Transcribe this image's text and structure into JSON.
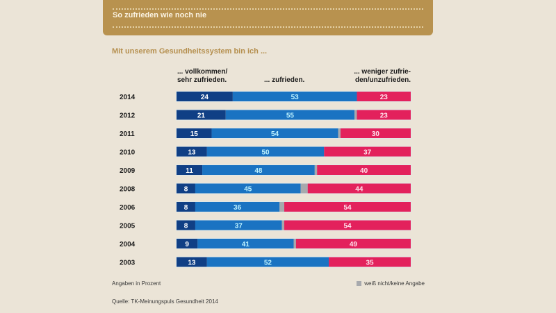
{
  "header": {
    "title": "So zufrieden wie noch nie"
  },
  "subtitle": "Mit unserem Gesundheitssystem bin ich ...",
  "columns": {
    "very_satisfied": [
      "... vollkommen/",
      "sehr zufrieden."
    ],
    "satisfied": "... zufrieden.",
    "less_satisfied": [
      "... weniger zufrie-",
      "den/unzufrieden."
    ]
  },
  "colors": {
    "very_satisfied": "#103f85",
    "satisfied": "#1a73c2",
    "no_answer": "#a7a9ad",
    "less_satisfied": "#e3215c",
    "label_dark_segment": "#ffffff",
    "label_mid_segment": "#bdf2ff",
    "label_pink_segment": "#ffe3ec"
  },
  "chart_data": {
    "type": "bar",
    "orientation": "horizontal",
    "stacked": true,
    "title": "So zufrieden wie noch nie",
    "subtitle": "Mit unserem Gesundheitssystem bin ich ...",
    "unit": "Prozent",
    "xlim": [
      0,
      100
    ],
    "categories": [
      "2014",
      "2012",
      "2011",
      "2010",
      "2009",
      "2008",
      "2006",
      "2005",
      "2004",
      "2003"
    ],
    "series": [
      {
        "name": "... vollkommen/sehr zufrieden.",
        "key": "very_satisfied",
        "values": [
          24,
          21,
          15,
          13,
          11,
          8,
          8,
          8,
          9,
          13
        ],
        "labeled": true
      },
      {
        "name": "... zufrieden.",
        "key": "satisfied",
        "values": [
          53,
          55,
          54,
          50,
          48,
          45,
          36,
          37,
          41,
          52
        ],
        "labeled": true
      },
      {
        "name": "weiß nicht/keine Angabe",
        "key": "no_answer",
        "values": [
          0,
          1,
          1,
          0,
          1,
          3,
          2,
          1,
          1,
          0
        ],
        "labeled": false
      },
      {
        "name": "... weniger zufrieden/unzufrieden.",
        "key": "less_satisfied",
        "values": [
          23,
          23,
          30,
          37,
          40,
          44,
          54,
          54,
          49,
          35
        ],
        "labeled": true
      }
    ],
    "legend": {
      "entries": [
        "weiß nicht/keine Angabe"
      ],
      "placement": "bottom-right"
    },
    "grid": false
  },
  "footer": {
    "note": "Angaben in Prozent",
    "legend_label": "weiß nicht/keine Angabe",
    "source": "Quelle: TK-Meinungspuls Gesundheit 2014"
  }
}
